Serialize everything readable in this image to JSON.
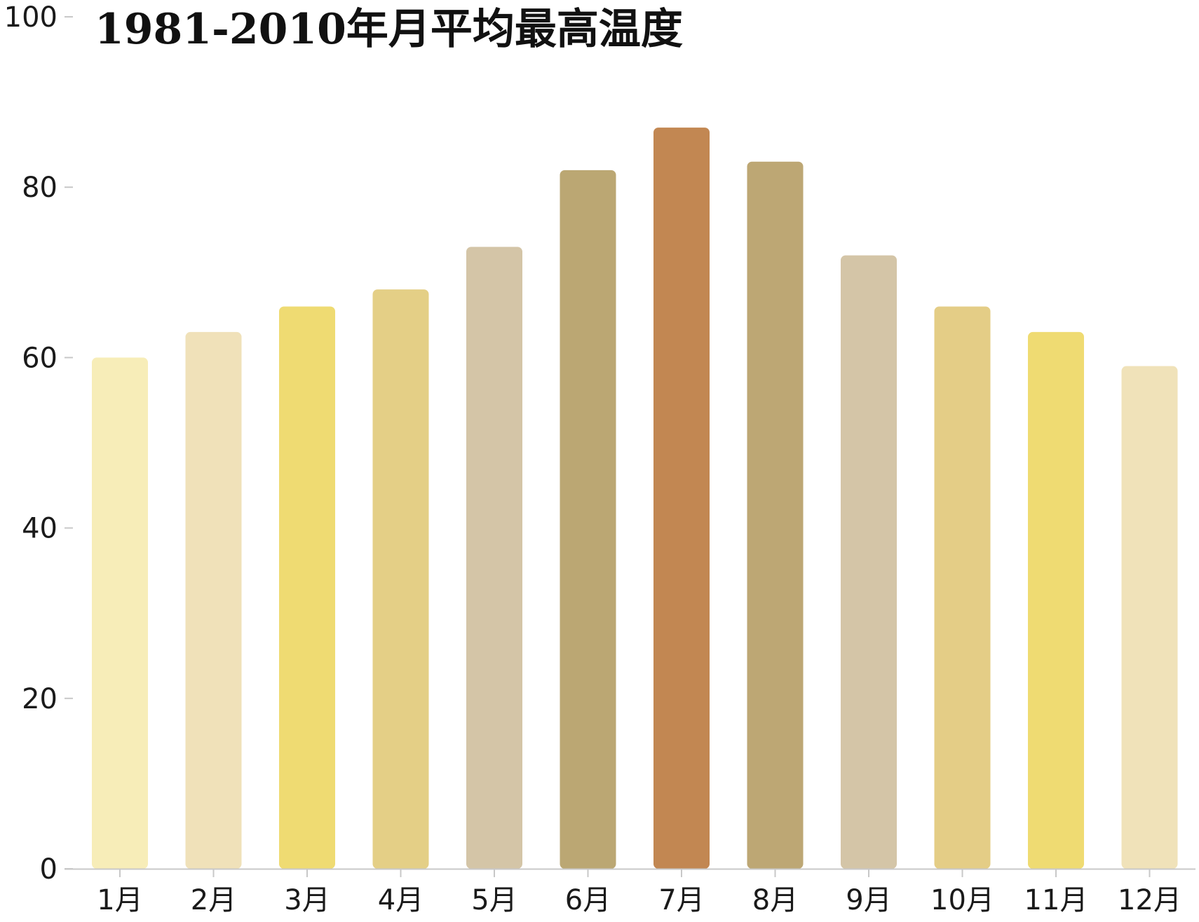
{
  "chart_data": {
    "type": "bar",
    "title": "1981-2010年月平均最高温度",
    "xlabel": "",
    "ylabel": "",
    "categories": [
      "1月",
      "2月",
      "3月",
      "4月",
      "5月",
      "6月",
      "7月",
      "8月",
      "9月",
      "10月",
      "11月",
      "12月"
    ],
    "values": [
      60,
      63,
      66,
      68,
      73,
      82,
      87,
      83,
      72,
      66,
      63,
      59
    ],
    "colors": [
      "#f7edb8",
      "#f0e1b9",
      "#efdb72",
      "#e4cf86",
      "#d4c5a7",
      "#bba773",
      "#c28752",
      "#bda774",
      "#d4c5a7",
      "#e4cd86",
      "#efdb72",
      "#f0e2b9"
    ],
    "ylim": [
      0,
      100
    ],
    "yticks": [
      0,
      20,
      40,
      60,
      80,
      100
    ],
    "grid": false,
    "legend": "none"
  }
}
